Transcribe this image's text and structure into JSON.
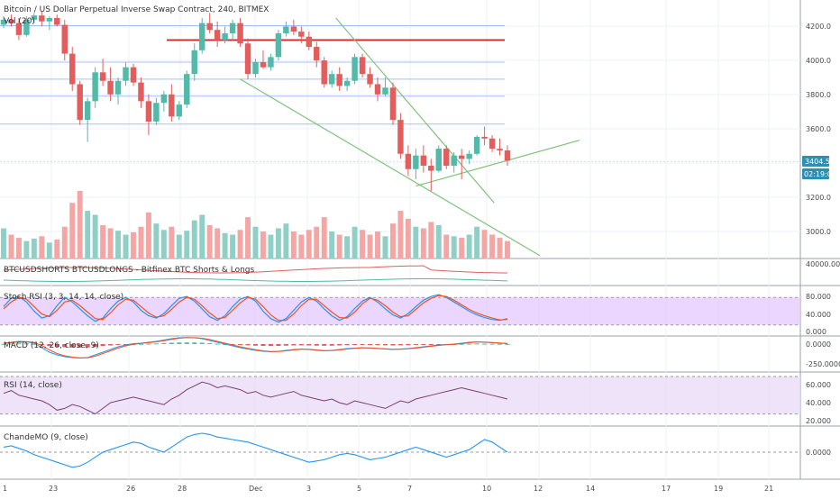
{
  "header": {
    "title": "Bitcoin / US Dollar Perpetual Inverse Swap Contract, 240, BITMEX",
    "volume_label": "Vol (20)"
  },
  "indicators": {
    "shorts_longs": "BTCUSDSHORTS BTCUSDLONGS - Bitfinex BTC Shorts & Longs",
    "stoch_rsi": "Stoch RSI (3, 3, 14, 14, close)",
    "macd": "MACD (12, 26, close, 9)",
    "rsi": "RSI (14, close)",
    "chandemo": "ChandeMO (9, close)"
  },
  "price_axis": {
    "ticks": [
      "4200.0",
      "4000.0",
      "3800.0",
      "3600.0",
      "3200.0",
      "3000.0"
    ],
    "current_price": "3404.5",
    "countdown": "02:19:05"
  },
  "indicator_axis": {
    "shorts_longs": [
      "40000.000"
    ],
    "stoch_rsi": [
      "80.000",
      "40.000",
      "0.000"
    ],
    "macd": [
      "0.0000",
      "-250.0000"
    ],
    "rsi": [
      "60.000",
      "40.000",
      "20.000"
    ],
    "chandemo": [
      "0.0000"
    ]
  },
  "date_axis": [
    "1",
    "23",
    "26",
    "28",
    "Dec",
    "3",
    "5",
    "7",
    "10",
    "12",
    "14",
    "17",
    "19",
    "21"
  ],
  "colors": {
    "up": "#53b9a8",
    "down": "#e35d5d",
    "up_volume": "#8fd0c6",
    "down_volume": "#f3a6a3",
    "hline": "#5b8ff9",
    "resistance": "#d32f2f",
    "channel": "#7ec27a",
    "stoch_band": "#e6ccff",
    "rsi_band": "#eadcf6",
    "stoch_k": "#2196f3",
    "stoch_d": "#f4511e",
    "rsi_line": "#7b3f6e",
    "chande_line": "#2196f3",
    "price_badge": "#2f8fb3"
  },
  "chart_data": {
    "type": "candlestick",
    "title": "Bitcoin / US Dollar Perpetual Inverse Swap Contract, 240, BITMEX",
    "interval": "240",
    "y_axis": {
      "ticks": [
        3000,
        3200,
        3600,
        3800,
        4000,
        4200
      ]
    },
    "x_axis": {
      "ticks": [
        "1",
        "23",
        "26",
        "28",
        "Dec",
        "3",
        "5",
        "7",
        "10",
        "12",
        "14",
        "17",
        "19",
        "21"
      ]
    },
    "candles": [
      [
        4210,
        4260,
        4190,
        4240
      ],
      [
        4240,
        4270,
        4200,
        4220
      ],
      [
        4220,
        4250,
        4120,
        4150
      ],
      [
        4150,
        4260,
        4140,
        4240
      ],
      [
        4240,
        4280,
        4220,
        4265
      ],
      [
        4265,
        4290,
        4200,
        4230
      ],
      [
        4230,
        4260,
        4180,
        4250
      ],
      [
        4250,
        4270,
        4200,
        4210
      ],
      [
        4210,
        4240,
        4000,
        4040
      ],
      [
        4040,
        4080,
        3820,
        3860
      ],
      [
        3860,
        3880,
        3620,
        3650
      ],
      [
        3650,
        3780,
        3520,
        3760
      ],
      [
        3760,
        3960,
        3720,
        3930
      ],
      [
        3930,
        4010,
        3850,
        3880
      ],
      [
        3880,
        3960,
        3760,
        3800
      ],
      [
        3800,
        3900,
        3740,
        3880
      ],
      [
        3880,
        3990,
        3850,
        3960
      ],
      [
        3960,
        3980,
        3850,
        3870
      ],
      [
        3870,
        3900,
        3720,
        3760
      ],
      [
        3760,
        3800,
        3560,
        3640
      ],
      [
        3640,
        3780,
        3620,
        3750
      ],
      [
        3750,
        3820,
        3700,
        3800
      ],
      [
        3800,
        3860,
        3640,
        3670
      ],
      [
        3670,
        3760,
        3650,
        3740
      ],
      [
        3740,
        3940,
        3720,
        3920
      ],
      [
        3920,
        4100,
        3880,
        4060
      ],
      [
        4060,
        4250,
        4040,
        4220
      ],
      [
        4220,
        4280,
        4160,
        4180
      ],
      [
        4180,
        4230,
        4080,
        4120
      ],
      [
        4120,
        4200,
        4100,
        4160
      ],
      [
        4160,
        4240,
        4120,
        4220
      ],
      [
        4220,
        4250,
        4080,
        4100
      ],
      [
        4100,
        4130,
        3890,
        3920
      ],
      [
        3920,
        4010,
        3900,
        3990
      ],
      [
        3990,
        4060,
        3950,
        3960
      ],
      [
        3960,
        4040,
        3940,
        4020
      ],
      [
        4020,
        4180,
        4000,
        4160
      ],
      [
        4160,
        4230,
        4140,
        4200
      ],
      [
        4200,
        4240,
        4150,
        4170
      ],
      [
        4170,
        4200,
        4100,
        4140
      ],
      [
        4140,
        4170,
        4060,
        4080
      ],
      [
        4080,
        4110,
        3960,
        4000
      ],
      [
        4000,
        4020,
        3840,
        3860
      ],
      [
        3860,
        3940,
        3840,
        3920
      ],
      [
        3920,
        3960,
        3820,
        3850
      ],
      [
        3850,
        3900,
        3820,
        3880
      ],
      [
        3880,
        4040,
        3860,
        4020
      ],
      [
        4020,
        4040,
        3900,
        3920
      ],
      [
        3920,
        3960,
        3840,
        3860
      ],
      [
        3860,
        3900,
        3760,
        3800
      ],
      [
        3800,
        3900,
        3790,
        3840
      ],
      [
        3840,
        3870,
        3620,
        3650
      ],
      [
        3650,
        3690,
        3420,
        3450
      ],
      [
        3450,
        3500,
        3320,
        3360
      ],
      [
        3360,
        3480,
        3300,
        3440
      ],
      [
        3440,
        3500,
        3340,
        3380
      ],
      [
        3380,
        3420,
        3230,
        3350
      ],
      [
        3350,
        3500,
        3340,
        3480
      ],
      [
        3480,
        3500,
        3360,
        3380
      ],
      [
        3380,
        3460,
        3340,
        3440
      ],
      [
        3440,
        3480,
        3300,
        3420
      ],
      [
        3420,
        3470,
        3390,
        3450
      ],
      [
        3450,
        3560,
        3440,
        3550
      ],
      [
        3550,
        3610,
        3500,
        3540
      ],
      [
        3540,
        3560,
        3460,
        3480
      ],
      [
        3480,
        3540,
        3440,
        3470
      ],
      [
        3470,
        3500,
        3380,
        3410
      ]
    ],
    "volume": [
      38,
      30,
      26,
      22,
      25,
      28,
      20,
      24,
      40,
      70,
      85,
      60,
      55,
      42,
      38,
      35,
      30,
      33,
      40,
      58,
      44,
      36,
      40,
      30,
      35,
      48,
      55,
      42,
      38,
      32,
      30,
      36,
      52,
      40,
      34,
      30,
      38,
      44,
      34,
      30,
      36,
      40,
      52,
      34,
      30,
      28,
      40,
      36,
      30,
      34,
      28,
      44,
      60,
      50,
      40,
      38,
      46,
      42,
      30,
      28,
      26,
      30,
      40,
      36,
      30,
      26,
      22
    ],
    "horizontal_levels": [
      4205,
      4120,
      3990,
      3890,
      3790,
      3625,
      3405
    ],
    "resistance_level": 4120,
    "current_price": 3404.5,
    "stoch_rsi": {
      "k": [
        60,
        78,
        82,
        70,
        50,
        35,
        40,
        62,
        80,
        70,
        55,
        40,
        28,
        35,
        55,
        72,
        80,
        70,
        52,
        40,
        35,
        45,
        62,
        78,
        82,
        72,
        55,
        38,
        30,
        40,
        60,
        76,
        82,
        72,
        50,
        34,
        26,
        34,
        52,
        70,
        80,
        72,
        55,
        40,
        30,
        38,
        56,
        72,
        80,
        70,
        55,
        42,
        35,
        45,
        60,
        74,
        82,
        86,
        80,
        70,
        60,
        50,
        42,
        36,
        32,
        30,
        34
      ],
      "d": [
        55,
        70,
        80,
        76,
        60,
        44,
        38,
        52,
        70,
        74,
        62,
        48,
        34,
        32,
        46,
        64,
        76,
        74,
        60,
        46,
        37,
        40,
        54,
        70,
        80,
        76,
        62,
        46,
        34,
        36,
        52,
        68,
        80,
        76,
        60,
        42,
        30,
        30,
        44,
        62,
        76,
        76,
        62,
        48,
        36,
        35,
        48,
        66,
        78,
        74,
        62,
        48,
        38,
        40,
        54,
        68,
        78,
        84,
        82,
        74,
        64,
        54,
        46,
        40,
        35,
        31,
        32
      ]
    },
    "rsi": [
      52,
      55,
      50,
      48,
      46,
      44,
      40,
      34,
      36,
      40,
      38,
      34,
      30,
      36,
      42,
      44,
      46,
      48,
      46,
      44,
      42,
      40,
      46,
      50,
      56,
      60,
      64,
      62,
      58,
      60,
      58,
      56,
      52,
      54,
      50,
      48,
      50,
      52,
      54,
      50,
      48,
      46,
      44,
      46,
      42,
      40,
      44,
      42,
      40,
      38,
      36,
      40,
      44,
      42,
      46,
      48,
      50,
      52,
      54,
      56,
      58,
      56,
      54,
      52,
      50,
      48,
      46
    ],
    "macd": [
      10,
      20,
      30,
      25,
      10,
      -40,
      -90,
      -120,
      -140,
      -150,
      -155,
      -150,
      -120,
      -90,
      -60,
      -30,
      -10,
      5,
      10,
      20,
      30,
      45,
      60,
      70,
      72,
      70,
      60,
      40,
      20,
      0,
      -20,
      -40,
      -55,
      -70,
      -80,
      -85,
      -80,
      -70,
      -60,
      -55,
      -60,
      -70,
      -75,
      -70,
      -60,
      -50,
      -45,
      -40,
      -45,
      -50,
      -55,
      -60,
      -55,
      -50,
      -40,
      -30,
      -20,
      -10,
      -5,
      0,
      10,
      20,
      25,
      20,
      15,
      10,
      5
    ],
    "chande_mo": [
      20,
      25,
      15,
      5,
      -10,
      -20,
      -30,
      -40,
      -50,
      -60,
      -55,
      -40,
      -20,
      0,
      10,
      20,
      30,
      40,
      35,
      20,
      10,
      0,
      20,
      40,
      60,
      70,
      75,
      70,
      60,
      55,
      50,
      45,
      40,
      30,
      20,
      10,
      0,
      -10,
      -20,
      -30,
      -40,
      -35,
      -30,
      -20,
      -10,
      -5,
      -10,
      -20,
      -30,
      -25,
      -20,
      -10,
      0,
      10,
      20,
      10,
      0,
      -10,
      -20,
      -10,
      0,
      10,
      30,
      50,
      40,
      20,
      0
    ]
  }
}
